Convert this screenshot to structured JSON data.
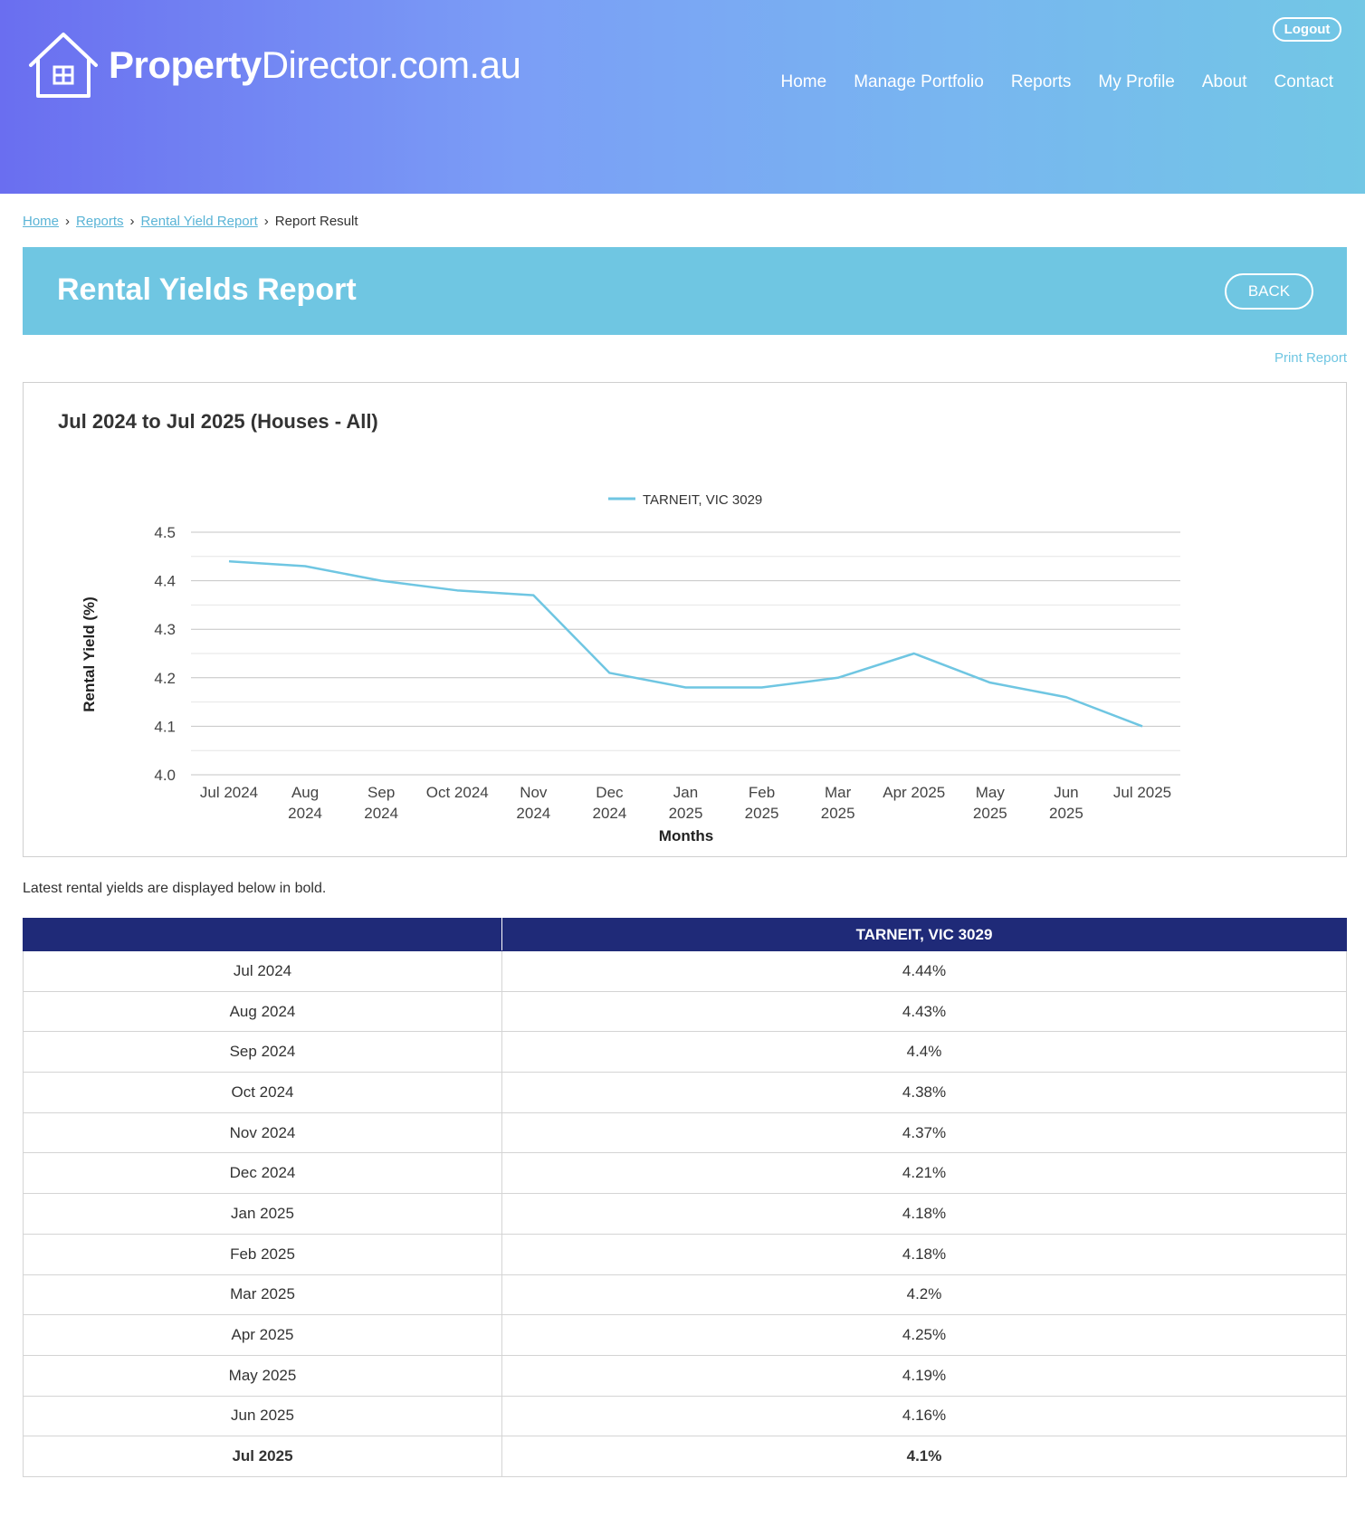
{
  "header": {
    "logo_bold": "Property",
    "logo_light": "Director.com.au",
    "logout_label": "Logout",
    "nav": [
      "Home",
      "Manage Portfolio",
      "Reports",
      "My Profile",
      "About",
      "Contact"
    ]
  },
  "breadcrumb": {
    "items": [
      "Home",
      "Reports",
      "Rental Yield Report"
    ],
    "current": "Report Result"
  },
  "titlebar": {
    "title": "Rental Yields Report",
    "back_label": "BACK"
  },
  "print_label": "Print Report",
  "chart_data": {
    "type": "line",
    "title": "Jul 2024 to Jul 2025 (Houses - All)",
    "xlabel": "Months",
    "ylabel": "Rental Yield (%)",
    "ylim": [
      4.0,
      4.5
    ],
    "yticks": [
      "4.0",
      "4.1",
      "4.2",
      "4.3",
      "4.4",
      "4.5"
    ],
    "legend_position": "top",
    "categories": [
      [
        "Jul 2024"
      ],
      [
        "Aug",
        "2024"
      ],
      [
        "Sep",
        "2024"
      ],
      [
        "Oct 2024"
      ],
      [
        "Nov",
        "2024"
      ],
      [
        "Dec",
        "2024"
      ],
      [
        "Jan",
        "2025"
      ],
      [
        "Feb",
        "2025"
      ],
      [
        "Mar",
        "2025"
      ],
      [
        "Apr 2025"
      ],
      [
        "May",
        "2025"
      ],
      [
        "Jun",
        "2025"
      ],
      [
        "Jul 2025"
      ]
    ],
    "series": [
      {
        "name": "TARNEIT, VIC 3029",
        "color": "#6fc6e2",
        "values": [
          4.44,
          4.43,
          4.4,
          4.38,
          4.37,
          4.21,
          4.18,
          4.18,
          4.2,
          4.25,
          4.19,
          4.16,
          4.1
        ]
      }
    ]
  },
  "note": "Latest rental yields are displayed below in bold.",
  "table": {
    "headers": [
      "",
      "TARNEIT, VIC 3029"
    ],
    "rows": [
      [
        "Jul 2024",
        "4.44%"
      ],
      [
        "Aug 2024",
        "4.43%"
      ],
      [
        "Sep 2024",
        "4.4%"
      ],
      [
        "Oct 2024",
        "4.38%"
      ],
      [
        "Nov 2024",
        "4.37%"
      ],
      [
        "Dec 2024",
        "4.21%"
      ],
      [
        "Jan 2025",
        "4.18%"
      ],
      [
        "Feb 2025",
        "4.18%"
      ],
      [
        "Mar 2025",
        "4.2%"
      ],
      [
        "Apr 2025",
        "4.25%"
      ],
      [
        "May 2025",
        "4.19%"
      ],
      [
        "Jun 2025",
        "4.16%"
      ],
      [
        "Jul 2025",
        "4.1%"
      ]
    ],
    "latest_row_index": 12
  },
  "colors": {
    "accent": "#6fc6e2",
    "table_header": "#1f2a78"
  }
}
